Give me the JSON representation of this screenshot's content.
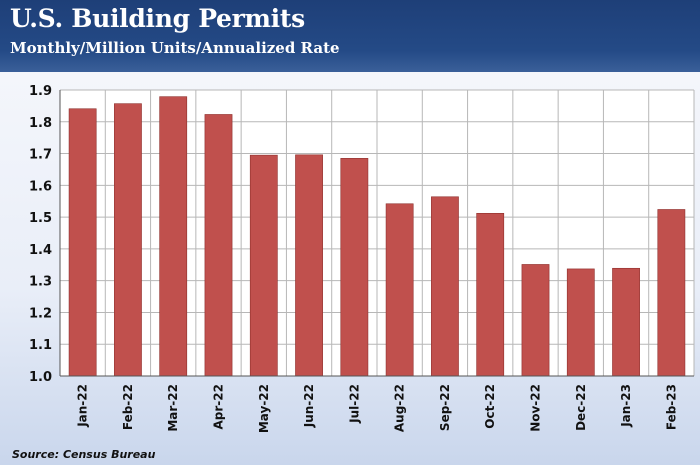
{
  "header": {
    "title": "U.S. Building Permits",
    "subtitle": "Monthly/Million Units/Annualized Rate"
  },
  "source": "Source: Census Bureau",
  "colors": {
    "bar": "#c0504d",
    "bar_edge": "#8e2f2c",
    "header_bg": "#1e3f78",
    "grid": "#b7b7b7"
  },
  "chart_data": {
    "type": "bar",
    "categories": [
      "Jan-22",
      "Feb-22",
      "Mar-22",
      "Apr-22",
      "May-22",
      "Jun-22",
      "Jul-22",
      "Aug-22",
      "Sep-22",
      "Oct-22",
      "Nov-22",
      "Dec-22",
      "Jan-23",
      "Feb-23"
    ],
    "values": [
      1.841,
      1.857,
      1.879,
      1.823,
      1.695,
      1.696,
      1.685,
      1.542,
      1.564,
      1.512,
      1.351,
      1.337,
      1.339,
      1.524
    ],
    "title": "U.S. Building Permits",
    "subtitle": "Monthly/Million Units/Annualized Rate",
    "xlabel": "",
    "ylabel": "",
    "ylim": [
      1.0,
      1.9
    ],
    "yticks": [
      "1.0",
      "1.1",
      "1.2",
      "1.3",
      "1.4",
      "1.5",
      "1.6",
      "1.7",
      "1.8",
      "1.9"
    ],
    "grid": true,
    "legend": "none"
  }
}
